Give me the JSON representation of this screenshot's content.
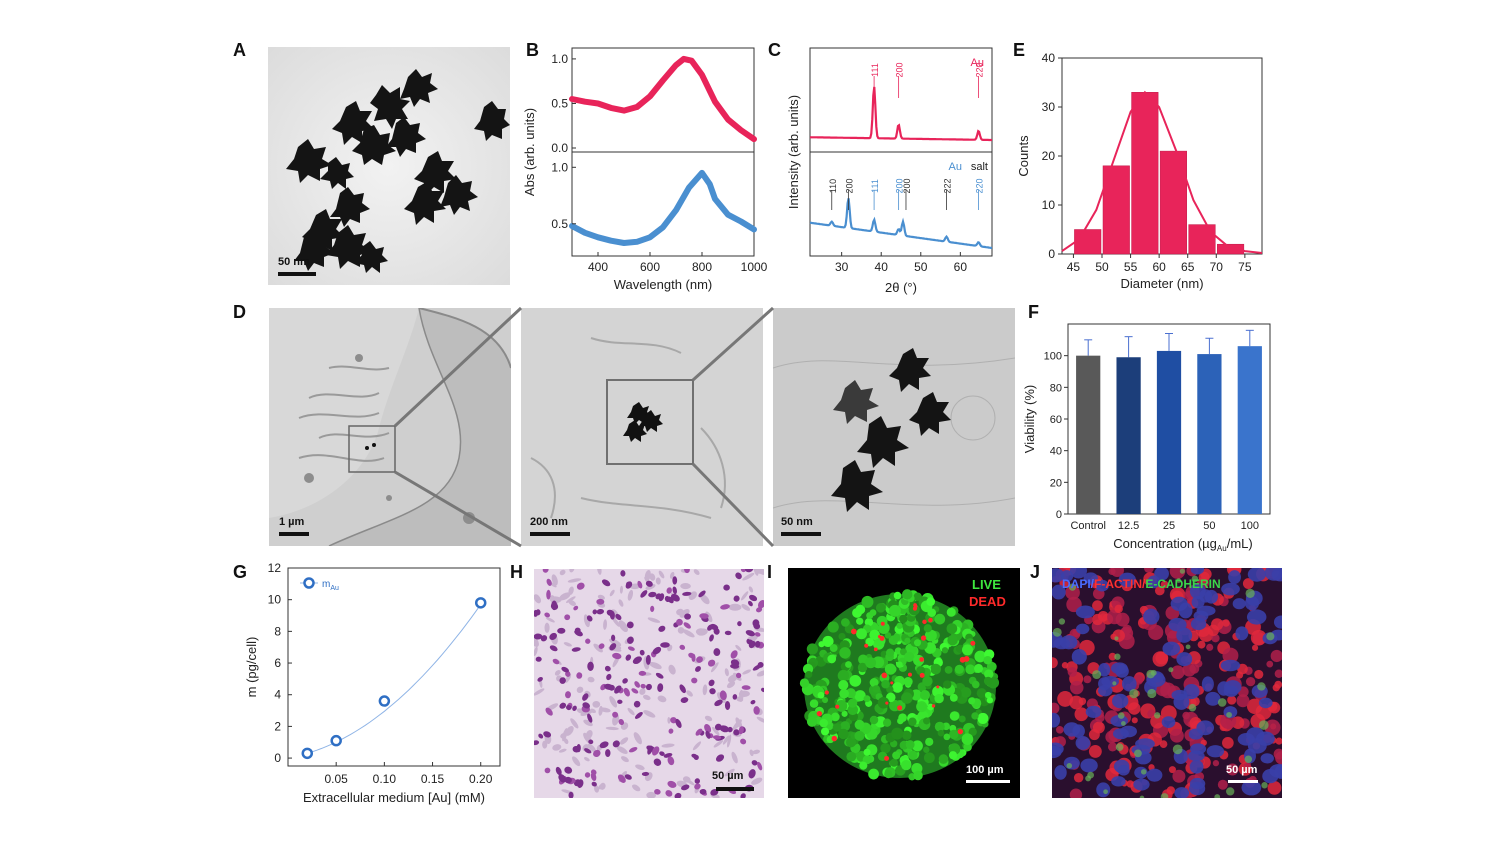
{
  "panels": {
    "A": {
      "letter": "A",
      "scale": "50 nm"
    },
    "B": {
      "letter": "B"
    },
    "C": {
      "letter": "C"
    },
    "D": {
      "letter": "D",
      "scales": [
        "1 µm",
        "200 nm",
        "50 nm"
      ]
    },
    "E": {
      "letter": "E"
    },
    "F": {
      "letter": "F"
    },
    "G": {
      "letter": "G"
    },
    "H": {
      "letter": "H",
      "scale": "50 µm"
    },
    "I": {
      "letter": "I",
      "scale": "100 µm",
      "live": "LIVE",
      "dead": "DEAD"
    },
    "J": {
      "letter": "J",
      "scale": "50 µm",
      "stain_dapi": "DAPI/",
      "stain_factin": "F-ACTIN/",
      "stain_ecad": "E-CADHERIN"
    }
  },
  "colors": {
    "red": "#e8245a",
    "blue": "#4a8fd0",
    "dark_blue": "#1c3e7a"
  },
  "chart_data": [
    {
      "id": "B",
      "type": "line",
      "xlabel": "Wavelength (nm)",
      "ylabel": "Abs (arb. units)",
      "xlim": [
        300,
        1000
      ],
      "xticks": [
        400,
        600,
        800,
        1000
      ],
      "yticks_top": [
        "0.0",
        "0.5",
        "1.0"
      ],
      "yticks_bottom": [
        "0.5",
        "1.0"
      ],
      "series": [
        {
          "panel": "top",
          "color": "#e8245a",
          "x": [
            300,
            350,
            400,
            450,
            500,
            550,
            600,
            650,
            700,
            730,
            760,
            800,
            850,
            900,
            950,
            1000
          ],
          "y": [
            0.55,
            0.52,
            0.5,
            0.45,
            0.42,
            0.46,
            0.58,
            0.76,
            0.93,
            1.0,
            0.98,
            0.82,
            0.52,
            0.32,
            0.2,
            0.1
          ]
        },
        {
          "panel": "bottom",
          "color": "#4a8fd0",
          "x": [
            300,
            350,
            400,
            450,
            500,
            550,
            600,
            650,
            700,
            750,
            800,
            830,
            850,
            900,
            950,
            1000
          ],
          "y": [
            0.48,
            0.42,
            0.38,
            0.35,
            0.33,
            0.34,
            0.38,
            0.47,
            0.62,
            0.82,
            0.95,
            0.85,
            0.72,
            0.58,
            0.52,
            0.45
          ]
        }
      ]
    },
    {
      "id": "C",
      "type": "line",
      "xlabel": "2θ (°)",
      "ylabel": "Intensity (arb. units)",
      "xlim": [
        22,
        68
      ],
      "xticks": [
        30,
        40,
        50,
        60
      ],
      "legend_top": "Au",
      "legend_bottom": {
        "a": "Au",
        "b": "salt"
      },
      "peaks_top": [
        {
          "x": 38.2,
          "label": "111"
        },
        {
          "x": 44.4,
          "label": "200"
        },
        {
          "x": 64.6,
          "label": "220"
        }
      ],
      "peaks_bottom": [
        {
          "x": 27.5,
          "label": "110",
          "color": "#333333"
        },
        {
          "x": 31.7,
          "label": "200",
          "color": "#333333"
        },
        {
          "x": 38.2,
          "label": "111",
          "color": "#4a8fd0"
        },
        {
          "x": 44.4,
          "label": "200",
          "color": "#4a8fd0"
        },
        {
          "x": 45.5,
          "label": "200",
          "color": "#333333"
        },
        {
          "x": 56.5,
          "label": "222",
          "color": "#333333"
        },
        {
          "x": 64.6,
          "label": "220",
          "color": "#4a8fd0"
        }
      ]
    },
    {
      "id": "E",
      "type": "bar",
      "xlabel": "Diameter (nm)",
      "ylabel": "Counts",
      "xlim": [
        43,
        78
      ],
      "ylim": [
        0,
        40
      ],
      "xticks": [
        45,
        50,
        55,
        60,
        65,
        70,
        75
      ],
      "yticks": [
        0,
        10,
        20,
        30,
        40
      ],
      "bin_width": 5,
      "centers": [
        47.5,
        52.5,
        57.5,
        62.5,
        67.5,
        72.5
      ],
      "values": [
        5,
        18,
        33,
        21,
        6,
        2
      ],
      "fit_x": [
        43,
        46,
        49,
        52,
        55,
        57.5,
        60,
        63,
        66,
        69,
        72,
        75,
        78
      ],
      "fit_y": [
        0.6,
        3,
        9,
        19,
        29,
        33,
        30,
        21,
        11,
        4.5,
        1.6,
        0.6,
        0.2
      ]
    },
    {
      "id": "F",
      "type": "bar",
      "xlabel": "Concentration (µg",
      "xlabel_sub": "Au",
      "xlabel_tail": "/mL)",
      "ylabel": "Viability (%)",
      "ylim": [
        0,
        120
      ],
      "yticks": [
        0,
        20,
        40,
        60,
        80,
        100
      ],
      "categories": [
        "Control",
        "12.5",
        "25",
        "50",
        "100"
      ],
      "values": [
        100,
        99,
        103,
        101,
        106
      ],
      "errors": [
        10,
        13,
        11,
        10,
        10
      ],
      "bar_colors": [
        "#595959",
        "#1c3e7a",
        "#1f4ea3",
        "#2c62b8",
        "#3a74cc"
      ]
    },
    {
      "id": "G",
      "type": "scatter",
      "xlabel": "Extracellular medium [Au] (mM)",
      "ylabel": "m (pg/cell)",
      "xlim": [
        0,
        0.22
      ],
      "ylim": [
        -0.5,
        12
      ],
      "xticks": [
        "0.05",
        "0.10",
        "0.15",
        "0.20"
      ],
      "yticks": [
        0,
        2,
        4,
        6,
        8,
        10,
        12
      ],
      "legend": "m",
      "legend_sub": "Au",
      "x": [
        0.02,
        0.05,
        0.1,
        0.2
      ],
      "y": [
        0.3,
        1.1,
        3.6,
        9.8
      ]
    }
  ]
}
